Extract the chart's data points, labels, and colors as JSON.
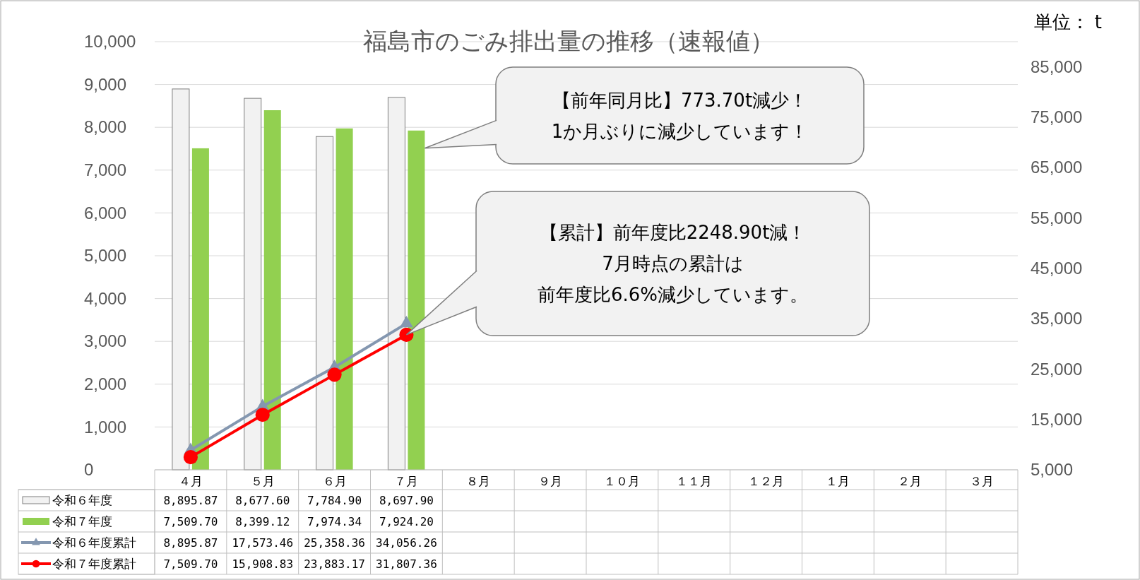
{
  "chart_data": {
    "type": "bar",
    "title": "福島市のごみ排出量の推移（速報値）",
    "categories": [
      "４月",
      "５月",
      "６月",
      "７月",
      "８月",
      "９月",
      "１０月",
      "１１月",
      "１２月",
      "１月",
      "２月",
      "３月"
    ],
    "series": [
      {
        "name": "令和６年度",
        "color": "#f2f2f2",
        "values": [
          8895.87,
          8677.6,
          7784.9,
          8697.9,
          null,
          null,
          null,
          null,
          null,
          null,
          null,
          null
        ],
        "value_labels": [
          "8,895.87",
          "8,677.60",
          "7,784.90",
          "8,697.90",
          null,
          null,
          null,
          null,
          null,
          null,
          null,
          null
        ]
      },
      {
        "name": "令和７年度",
        "color": "#92d050",
        "values": [
          7509.7,
          8399.12,
          7974.34,
          7924.2,
          null,
          null,
          null,
          null,
          null,
          null,
          null,
          null
        ],
        "value_labels": [
          "7,509.70",
          "8,399.12",
          "7,974.34",
          "7,924.20",
          null,
          null,
          null,
          null,
          null,
          null,
          null,
          null
        ]
      },
      {
        "name": "令和６年度累計",
        "type": "line",
        "axis": "y2",
        "marker": "triangle",
        "color": "#8497b0",
        "values": [
          8895.87,
          17573.46,
          25358.36,
          34056.26,
          null,
          null,
          null,
          null,
          null,
          null,
          null,
          null
        ],
        "value_labels": [
          "8,895.87",
          "17,573.46",
          "25,358.36",
          "34,056.26",
          null,
          null,
          null,
          null,
          null,
          null,
          null,
          null
        ]
      },
      {
        "name": "令和７年度累計",
        "type": "line",
        "axis": "y2",
        "marker": "circle",
        "color": "#ff0000",
        "values": [
          7509.7,
          15908.83,
          23883.17,
          31807.36,
          null,
          null,
          null,
          null,
          null,
          null,
          null,
          null
        ],
        "value_labels": [
          "7,509.70",
          "15,908.83",
          "23,883.17",
          "31,807.36",
          null,
          null,
          null,
          null,
          null,
          null,
          null,
          null
        ]
      }
    ],
    "ylim": [
      0,
      10000
    ],
    "yticks": [
      0,
      {
        "value": 1000,
        "label": "1,000"
      },
      {
        "value": 2000,
        "label": "2,000"
      },
      {
        "value": 3000,
        "label": "3,000"
      },
      {
        "value": 4000,
        "label": "4,000"
      },
      {
        "value": 5000,
        "label": "5,000"
      },
      {
        "value": 6000,
        "label": "6,000"
      },
      {
        "value": 7000,
        "label": "7,000"
      },
      {
        "value": 8000,
        "label": "8,000"
      },
      {
        "value": 9000,
        "label": "9,000"
      },
      {
        "value": 10000,
        "label": "10,000"
      }
    ],
    "y2lim": [
      5000,
      90000
    ],
    "y2ticks": [
      {
        "value": 5000,
        "label": "5,000"
      },
      {
        "value": 15000,
        "label": "15,000"
      },
      {
        "value": 25000,
        "label": "25,000"
      },
      {
        "value": 35000,
        "label": "35,000"
      },
      {
        "value": 45000,
        "label": "45,000"
      },
      {
        "value": 55000,
        "label": "55,000"
      },
      {
        "value": 65000,
        "label": "65,000"
      },
      {
        "value": 75000,
        "label": "75,000"
      },
      {
        "value": 85000,
        "label": "85,000"
      }
    ],
    "grid": "y",
    "legend": "bottom",
    "annotations": [
      "単位： t",
      "【前年同月比】773.70t減少！",
      "1か月ぶりに減少しています！",
      "【累計】前年度比2248.90t減！",
      "7月時点の累計は",
      "前年度比6.6%減少しています。"
    ]
  }
}
